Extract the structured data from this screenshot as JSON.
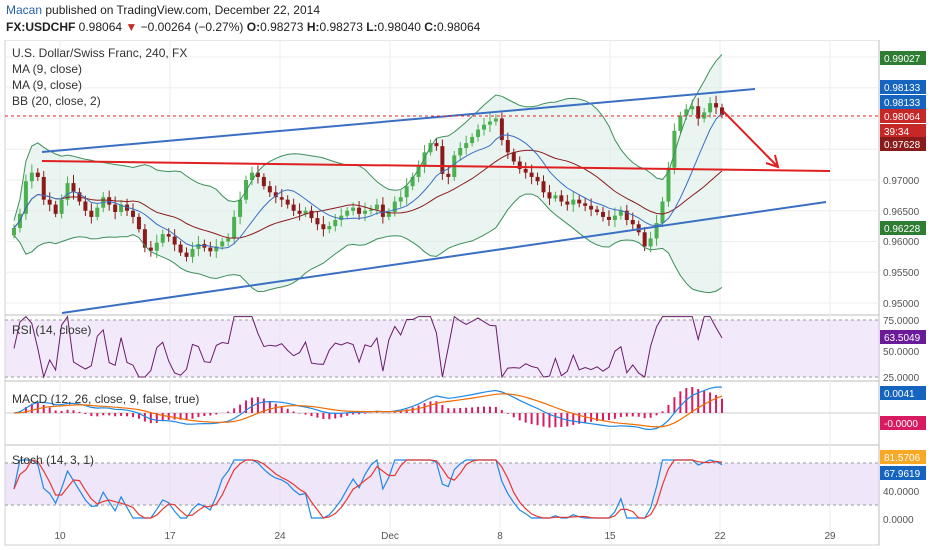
{
  "header": {
    "author": "Macan",
    "published": "published on TradingView.com, December 22, 2014",
    "symbol": "FX:USDCHF",
    "last": "0.98064",
    "change_arrow": "▼",
    "change": "−0.00264 (−0.27%)",
    "o_label": "O:",
    "o": "0.98273",
    "h_label": "H:",
    "h": "0.98273",
    "l_label": "L:",
    "l": "0.98040",
    "c_label": "C:",
    "c": "0.98064"
  },
  "legend": {
    "title": "U.S. Dollar/Swiss Franc, 240, FX",
    "ma1": "MA (9, close)",
    "ma2": "MA (9, close)",
    "bb": "BB (20, close, 2)"
  },
  "panes": {
    "rsi_label": "RSI (14, close)",
    "macd_label": "MACD (12, 26, close, 9, false, true)",
    "stoch_label": "Stoch (14, 3, 1)"
  },
  "price_axis": {
    "ticks": [
      "0.95000",
      "0.95500",
      "0.96000",
      "0.96500",
      "0.97000"
    ],
    "badges": [
      {
        "label": "0.99027",
        "color": "#2e7d32"
      },
      {
        "label": "0.98133",
        "color": "#1565c0"
      },
      {
        "label": "0.98133",
        "color": "#1565c0"
      },
      {
        "label": "0.98064",
        "color": "#c62828"
      },
      {
        "label": "39:34",
        "color": "#c62828"
      },
      {
        "label": "0.97628",
        "color": "#8b1a1a"
      },
      {
        "label": "0.96228",
        "color": "#2e7d32"
      }
    ]
  },
  "rsi_axis": {
    "ticks": [
      "75.0000",
      "50.0000",
      "25.0000"
    ],
    "badge": {
      "label": "63.5049",
      "color": "#6a1b9a"
    }
  },
  "macd_axis": {
    "badges": [
      {
        "label": "0.0041",
        "color": "#1565c0"
      },
      {
        "label": "-0.0000",
        "color": "#d81b60"
      }
    ]
  },
  "stoch_axis": {
    "ticks": [
      "40.0000",
      "0.0000"
    ],
    "badges": [
      {
        "label": "81.5706",
        "color": "#f9a825"
      },
      {
        "label": "67.9619",
        "color": "#1565c0"
      }
    ]
  },
  "time_axis": {
    "labels": [
      "10",
      "17",
      "24",
      "Dec",
      "8",
      "15",
      "22",
      "29"
    ]
  },
  "colors": {
    "up": "#4caf50",
    "down": "#8b1a1a",
    "bb": "#3d8f5a",
    "ma": "#8b1a1a",
    "trend": "#3a6fc4",
    "resistance": "#e02020",
    "rsi": "#6a1b6a",
    "macd": "#1e88e5",
    "signal": "#ef6c00",
    "hist": "#d81b60",
    "stoch_k": "#1e88e5",
    "stoch_d": "#e53935",
    "pane_fill": "#e6d5f5"
  },
  "chart_data": {
    "type": "candlestick",
    "title": "U.S. Dollar/Swiss Franc, 240, FX",
    "interval": "240",
    "close_series": [
      0.9622,
      0.9645,
      0.9698,
      0.9712,
      0.9705,
      0.9668,
      0.966,
      0.9645,
      0.9668,
      0.9695,
      0.968,
      0.9665,
      0.965,
      0.964,
      0.9655,
      0.9672,
      0.966,
      0.9648,
      0.966,
      0.965,
      0.964,
      0.962,
      0.959,
      0.9585,
      0.9598,
      0.9612,
      0.9608,
      0.9595,
      0.9582,
      0.9575,
      0.9588,
      0.9596,
      0.959,
      0.9584,
      0.9592,
      0.96,
      0.9605,
      0.964,
      0.9668,
      0.97,
      0.9712,
      0.9705,
      0.969,
      0.968,
      0.9672,
      0.9668,
      0.966,
      0.965,
      0.9645,
      0.965,
      0.9638,
      0.9628,
      0.962,
      0.9625,
      0.9635,
      0.9642,
      0.965,
      0.9655,
      0.9645,
      0.965,
      0.9652,
      0.966,
      0.964,
      0.9648,
      0.9665,
      0.9672,
      0.969,
      0.9705,
      0.9722,
      0.9745,
      0.976,
      0.9755,
      0.971,
      0.9705,
      0.974,
      0.9752,
      0.976,
      0.977,
      0.9782,
      0.979,
      0.9795,
      0.98,
      0.9765,
      0.9745,
      0.973,
      0.9718,
      0.9712,
      0.9705,
      0.9698,
      0.968,
      0.967,
      0.9675,
      0.9665,
      0.966,
      0.9668,
      0.9662,
      0.9658,
      0.9652,
      0.9648,
      0.964,
      0.9635,
      0.9642,
      0.965,
      0.9635,
      0.9628,
      0.9615,
      0.9592,
      0.9605,
      0.963,
      0.9665,
      0.972,
      0.978,
      0.9805,
      0.9815,
      0.982,
      0.98,
      0.981,
      0.9825,
      0.9818,
      0.9806
    ],
    "indicators": [
      "MA (9, close)",
      "MA (9, close)",
      "BB (20, close, 2)",
      "RSI (14, close)",
      "MACD (12, 26, close, 9, false, true)",
      "Stoch (14, 3, 1)"
    ]
  }
}
